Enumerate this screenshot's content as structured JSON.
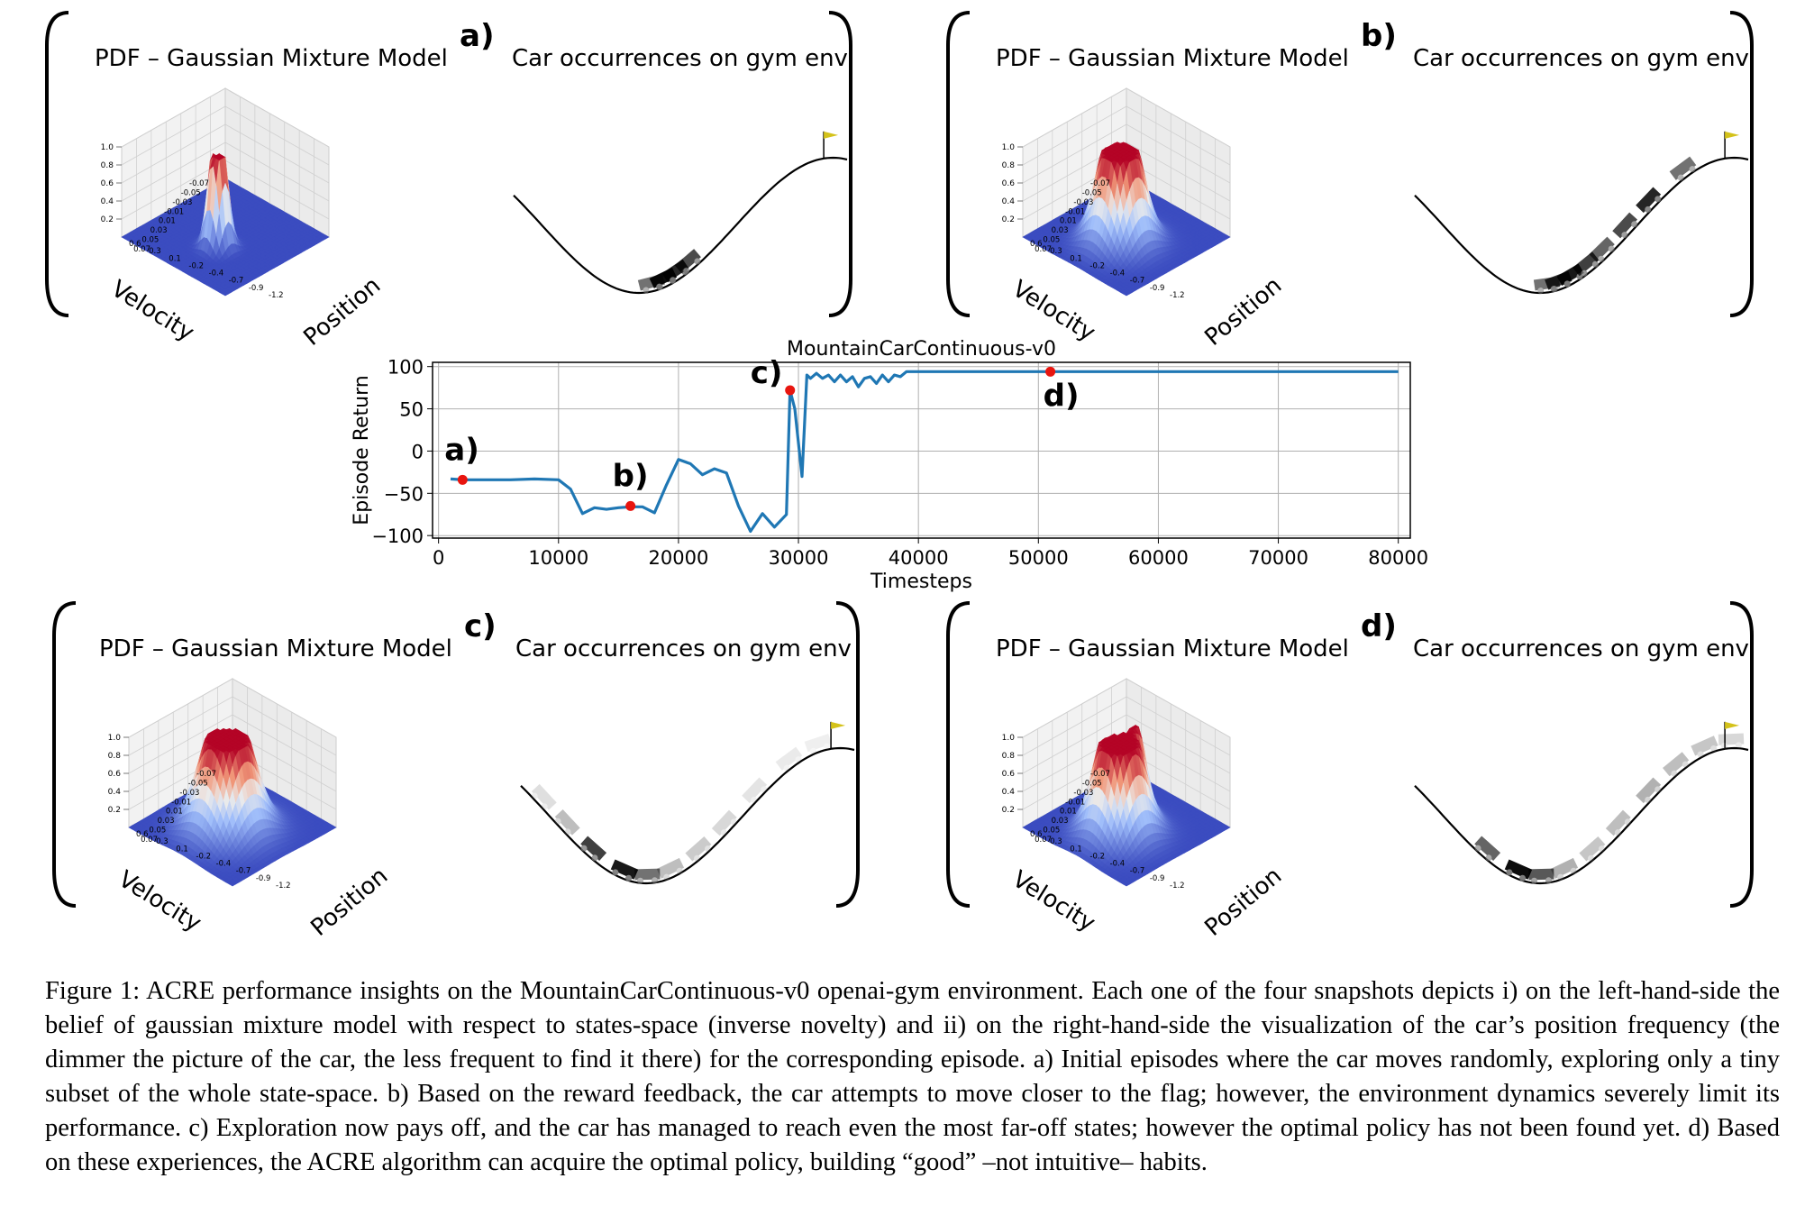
{
  "panels": [
    {
      "id": "a",
      "label": "a)",
      "gmm_title": "PDF – Gaussian Mixture Model",
      "env_title": "Car occurrences on gym env"
    },
    {
      "id": "b",
      "label": "b)",
      "gmm_title": "PDF – Gaussian Mixture Model",
      "env_title": "Car occurrences on gym env"
    },
    {
      "id": "c",
      "label": "c)",
      "gmm_title": "PDF – Gaussian Mixture Model",
      "env_title": "Car occurrences on gym env"
    },
    {
      "id": "d",
      "label": "d)",
      "gmm_title": "PDF – Gaussian Mixture Model",
      "env_title": "Car occurrences on gym env"
    }
  ],
  "surface_axes": {
    "velocity_label": "Velocity",
    "position_label": "Position",
    "z_ticks": [
      "1.0",
      "0.8",
      "0.6",
      "0.4",
      "0.2"
    ],
    "velocity_ticks": [
      "-0.07",
      "-0.05",
      "-0.03",
      "-0.01",
      "0.01",
      "0.03",
      "0.05",
      "0.07"
    ],
    "position_ticks": [
      "-1.2",
      "-0.9",
      "-0.7",
      "-0.4",
      "-0.2",
      "0.1",
      "0.3",
      "0.6"
    ]
  },
  "colors": {
    "line": "#1f77b4",
    "marker": "#e8150f",
    "surface_low": "#3b4cc0",
    "surface_high": "#b40426",
    "flag": "#d4c21a"
  },
  "chart_data": {
    "type": "line",
    "title": "MountainCarContinuous-v0",
    "xlabel": "Timesteps",
    "ylabel": "Episode Return",
    "xlim": [
      -500,
      81000
    ],
    "ylim": [
      -103,
      105
    ],
    "xticks": [
      0,
      10000,
      20000,
      30000,
      40000,
      50000,
      60000,
      70000,
      80000
    ],
    "yticks": [
      100,
      50,
      0,
      -50,
      -100
    ],
    "grid": true,
    "series": [
      {
        "x": [
          1000,
          2000,
          4000,
          6000,
          8000,
          10000,
          11000,
          12000,
          13000,
          14000,
          15000,
          16000,
          17000,
          18000,
          19000,
          20000,
          21000,
          22000,
          23000,
          24000,
          25000,
          26000,
          27000,
          28000,
          29000,
          29300,
          29700,
          30300,
          30700,
          31000,
          31500,
          32000,
          32500,
          33000,
          33500,
          34000,
          34500,
          35000,
          35500,
          36000,
          36500,
          37000,
          37500,
          38000,
          38500,
          39000,
          40000,
          50000,
          60000,
          70000,
          80000
        ],
        "y": [
          -33,
          -34,
          -34,
          -34,
          -33,
          -34,
          -45,
          -74,
          -67,
          -69,
          -67,
          -66,
          -66,
          -73,
          -40,
          -10,
          -15,
          -28,
          -21,
          -26,
          -65,
          -95,
          -74,
          -90,
          -75,
          72,
          50,
          -30,
          90,
          86,
          92,
          86,
          90,
          82,
          90,
          82,
          88,
          76,
          86,
          88,
          80,
          90,
          82,
          90,
          88,
          94,
          94,
          94,
          94,
          94,
          94
        ]
      }
    ],
    "markers": [
      {
        "label": "a)",
        "x": 2000,
        "y": -34
      },
      {
        "label": "b)",
        "x": 16000,
        "y": -65
      },
      {
        "label": "c)",
        "x": 29300,
        "y": 72
      },
      {
        "label": "d)",
        "x": 51000,
        "y": 94
      }
    ]
  },
  "caption": "Figure 1: ACRE performance insights on the MountainCarContinuous-v0 openai-gym environment. Each one of the four snapshots depicts i) on the left-hand-side the belief of gaussian mixture model with respect to states-space (inverse novelty) and ii) on the right-hand-side the visualization of the car’s position frequency (the dimmer the picture of the car, the less frequent to find it there) for the corresponding episode. a) Initial episodes where the car moves randomly, exploring only a tiny subset of the whole state-space. b) Based on the reward feedback, the car attempts to move closer to the flag; however, the environment dynamics severely limit its performance. c) Exploration now pays off, and the car has managed to reach even the most far-off states; however the optimal policy has not been found yet. d) Based on these experiences, the ACRE algorithm can acquire the optimal policy, building “good” –not intuitive– habits."
}
